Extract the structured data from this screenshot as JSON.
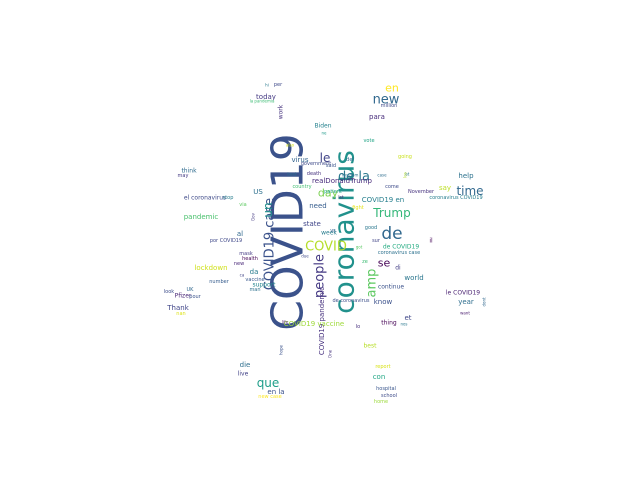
{
  "words": [
    {
      "text": "COVID19",
      "color": "#3b528b"
    },
    {
      "text": "coronavirus",
      "color": "#21918c"
    },
    {
      "text": "de",
      "color": "#31688e"
    },
    {
      "text": "COVID19 case",
      "color": "#3b528b"
    },
    {
      "text": "de la",
      "color": "#2a788e"
    },
    {
      "text": "people",
      "color": "#443983"
    },
    {
      "text": "COVID",
      "color": "#b5de2b"
    },
    {
      "text": "amp",
      "color": "#5ec962"
    },
    {
      "text": "new",
      "color": "#31688e"
    },
    {
      "text": "en",
      "color": "#fde725"
    },
    {
      "text": "time",
      "color": "#31688e"
    },
    {
      "text": "Trump",
      "color": "#35b779"
    },
    {
      "text": "un",
      "color": "#21918c"
    },
    {
      "text": "le",
      "color": "#414487"
    },
    {
      "text": "day",
      "color": "#7ad151"
    },
    {
      "text": "que",
      "color": "#1f9e89"
    },
    {
      "text": "se",
      "color": "#440154"
    },
    {
      "text": "today",
      "color": "#443983"
    },
    {
      "text": "work",
      "color": "#46337e"
    },
    {
      "text": "para",
      "color": "#472d7b"
    },
    {
      "text": "million",
      "color": "#3e4989"
    },
    {
      "text": "Biden",
      "color": "#26828e"
    },
    {
      "text": "vote",
      "color": "#20a486"
    },
    {
      "text": "help",
      "color": "#2c728e"
    },
    {
      "text": "say",
      "color": "#bddf26"
    },
    {
      "text": "COVID19 en",
      "color": "#277f8e"
    },
    {
      "text": "realDonaldTrump",
      "color": "#472a7a"
    },
    {
      "text": "pandemic",
      "color": "#4ac16d"
    },
    {
      "text": "el coronavirus",
      "color": "#3e4a89"
    },
    {
      "text": "virus",
      "color": "#33638d"
    },
    {
      "text": "need",
      "color": "#365d8d"
    },
    {
      "text": "state",
      "color": "#404688"
    },
    {
      "text": "US",
      "color": "#2d708e"
    },
    {
      "text": "al",
      "color": "#31688e"
    },
    {
      "text": "da",
      "color": "#287c8e"
    },
    {
      "text": "COVID19 pandemic",
      "color": "#46307e"
    },
    {
      "text": "de COVID19",
      "color": "#25ac82"
    },
    {
      "text": "world",
      "color": "#2a768e"
    },
    {
      "text": "di",
      "color": "#433e85"
    },
    {
      "text": "et",
      "color": "#3f4788"
    },
    {
      "text": "year",
      "color": "#2e6e8e"
    },
    {
      "text": "know",
      "color": "#3b518b"
    },
    {
      "text": "thing",
      "color": "#440154"
    },
    {
      "text": "continue",
      "color": "#3b528b"
    },
    {
      "text": "le COVID19",
      "color": "#481f70"
    },
    {
      "text": "COVID19 vaccine",
      "color": "#9fda3a"
    },
    {
      "text": "lockdown",
      "color": "#d0e11c"
    },
    {
      "text": "Thank",
      "color": "#404588"
    },
    {
      "text": "die",
      "color": "#2e6f8e"
    },
    {
      "text": "live",
      "color": "#414287"
    },
    {
      "text": "en la",
      "color": "#3b528b"
    },
    {
      "text": "con",
      "color": "#22a785"
    },
    {
      "text": "hospital",
      "color": "#39558c"
    },
    {
      "text": "school",
      "color": "#3e4c8a"
    },
    {
      "text": "said",
      "color": "#3a538b"
    },
    {
      "text": "del",
      "color": "#2f6c8e"
    },
    {
      "text": "week",
      "color": "#287d8e"
    },
    {
      "text": "look",
      "color": "#3d4d8a"
    },
    {
      "text": "UK",
      "color": "#31678e"
    },
    {
      "text": "Pfizer",
      "color": "#482576"
    },
    {
      "text": "number",
      "color": "#365c8d"
    },
    {
      "text": "test",
      "color": "#2e6d8e"
    },
    {
      "text": "death",
      "color": "#46327e"
    },
    {
      "text": "going",
      "color": "#cae11f"
    },
    {
      "text": "think",
      "color": "#2f6b8e"
    },
    {
      "text": "coronavirus case",
      "color": "#2c718e"
    },
    {
      "text": "por COVID19",
      "color": "#3f4889"
    },
    {
      "text": "il",
      "color": "#46075a"
    },
    {
      "text": "government",
      "color": "#3e4a89"
    },
    {
      "text": "country",
      "color": "#42be71"
    },
    {
      "text": "report",
      "color": "#d8e219"
    },
    {
      "text": "mask",
      "color": "#443a83"
    },
    {
      "text": "health",
      "color": "#440154"
    },
    {
      "text": "vaccine",
      "color": "#38588c"
    },
    {
      "text": "support",
      "color": "#24868e"
    },
    {
      "text": "best",
      "color": "#b8de29"
    },
    {
      "text": "home",
      "color": "#9bd93c"
    },
    {
      "text": "good",
      "color": "#2a778e"
    },
    {
      "text": "pour",
      "color": "#3b528b"
    },
    {
      "text": "man",
      "color": "#2d718e"
    },
    {
      "text": "stop",
      "color": "#287d8e"
    },
    {
      "text": "patient",
      "color": "#1fa088"
    },
    {
      "text": "la pandemia",
      "color": "#3dbc74"
    },
    {
      "text": "new case",
      "color": "#fde725"
    },
    {
      "text": "November",
      "color": "#46327e"
    },
    {
      "text": "coronavirus COVID19",
      "color": "#277e8e"
    },
    {
      "text": "dont",
      "color": "#31688e"
    },
    {
      "text": "want",
      "color": "#481b6d"
    },
    {
      "text": "vs",
      "color": "#34608d"
    },
    {
      "text": "hope",
      "color": "#3b528b"
    },
    {
      "text": "come",
      "color": "#3e4c8a"
    },
    {
      "text": "life",
      "color": "#48186a"
    },
    {
      "text": "de coronavirus",
      "color": "#3c4f8a"
    },
    {
      "text": "new",
      "color": "#482677"
    },
    {
      "text": "per",
      "color": "#3e4989"
    },
    {
      "text": "hi",
      "color": "#29798e"
    },
    {
      "text": "ne",
      "color": "#1f998a"
    },
    {
      "text": "via",
      "color": "#5ec962"
    },
    {
      "text": "also",
      "color": "#d5e21a"
    },
    {
      "text": "let",
      "color": "#482878"
    },
    {
      "text": "may",
      "color": "#443a83"
    },
    {
      "text": "nan",
      "color": "#dde318"
    },
    {
      "text": "sur",
      "color": "#414487"
    },
    {
      "text": "ca",
      "color": "#414487"
    },
    {
      "text": "Gov",
      "color": "#443a83"
    },
    {
      "text": "freedom",
      "color": "#2c738e"
    },
    {
      "text": "case",
      "color": "#2e6e8e"
    },
    {
      "text": "ist",
      "color": "#2a788e"
    },
    {
      "text": "los",
      "color": "#b5de2b"
    },
    {
      "text": "One",
      "color": "#46337e"
    },
    {
      "text": "due",
      "color": "#3e4989"
    },
    {
      "text": "fight",
      "color": "#e5e419"
    },
    {
      "text": "lo",
      "color": "#472f7d"
    },
    {
      "text": "ze",
      "color": "#3dbc74"
    },
    {
      "text": "got",
      "color": "#5ac864"
    },
    {
      "text": "nos",
      "color": "#2a788e"
    }
  ]
}
